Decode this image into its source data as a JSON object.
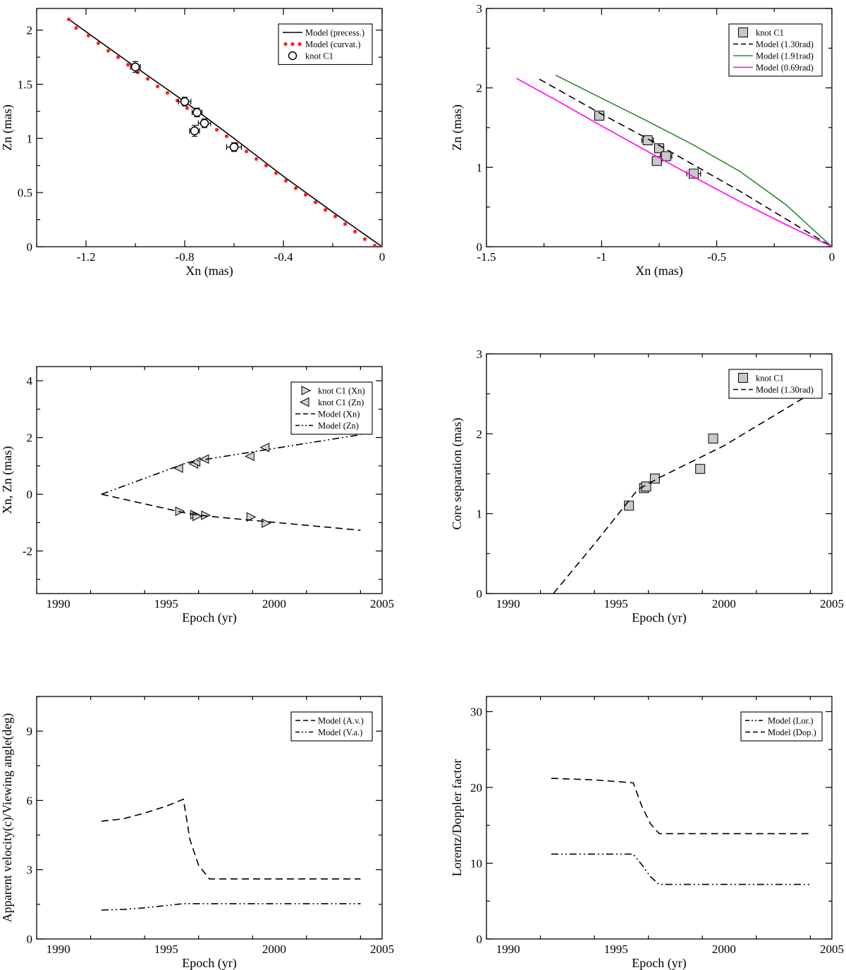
{
  "chart_data": [
    {
      "type": "scatter",
      "panel": "top-left",
      "xlabel": "Xn (mas)",
      "ylabel": "Zn (mas)",
      "xlim": [
        -1.4,
        0
      ],
      "ylim": [
        0,
        2.2
      ],
      "xticks": [
        -1.2,
        -0.8,
        -0.4,
        0
      ],
      "xtick_labels": [
        "-1.2",
        "-0.8",
        "-0.4",
        "0"
      ],
      "yticks": [
        0,
        0.5,
        1,
        1.5,
        2
      ],
      "ytick_labels": [
        "0",
        "0.5",
        "1",
        "1.5",
        "2"
      ],
      "legend_position": "top-right",
      "series": [
        {
          "name": "Model (precess.)",
          "kind": "line",
          "color": "#000000",
          "dash": "none",
          "x": [
            -1.27,
            -1.0,
            -0.8,
            -0.6,
            -0.4,
            -0.2,
            0
          ],
          "y": [
            2.1,
            1.66,
            1.34,
            1.0,
            0.65,
            0.32,
            0
          ]
        },
        {
          "name": "Model (curvat.)",
          "kind": "dots",
          "color": "#ff2020",
          "x": [
            -1.27,
            -1.24,
            -1.19,
            -1.15,
            -1.11,
            -1.07,
            -1.03,
            -0.99,
            -0.95,
            -0.91,
            -0.87,
            -0.83,
            -0.79,
            -0.75,
            -0.71,
            -0.67,
            -0.63,
            -0.59,
            -0.55,
            -0.51,
            -0.47,
            -0.43,
            -0.39,
            -0.35,
            -0.31,
            -0.27,
            -0.23,
            -0.19,
            -0.15,
            -0.11,
            -0.07,
            -0.03,
            0
          ],
          "y": [
            2.1,
            2.02,
            1.95,
            1.88,
            1.81,
            1.75,
            1.68,
            1.61,
            1.55,
            1.48,
            1.42,
            1.35,
            1.28,
            1.22,
            1.15,
            1.08,
            1.02,
            0.95,
            0.88,
            0.81,
            0.75,
            0.68,
            0.61,
            0.54,
            0.48,
            0.41,
            0.34,
            0.28,
            0.21,
            0.14,
            0.07,
            0.01,
            0
          ]
        },
        {
          "name": "knot C1",
          "kind": "circle",
          "color": "#000000",
          "x": [
            -1.0,
            -0.8,
            -0.75,
            -0.72,
            -0.76,
            -0.6
          ],
          "y": [
            1.66,
            1.34,
            1.24,
            1.14,
            1.07,
            0.92
          ],
          "xerr": [
            0.02,
            0.025,
            0.02,
            0.025,
            0.02,
            0.03
          ],
          "yerr": [
            0.05,
            0.04,
            0.04,
            0.04,
            0.05,
            0.04
          ]
        }
      ]
    },
    {
      "type": "scatter",
      "panel": "top-right",
      "xlabel": "Xn (mas)",
      "ylabel": "Zn (mas)",
      "xlim": [
        -1.5,
        0
      ],
      "ylim": [
        0,
        3
      ],
      "xticks": [
        -1.5,
        -1,
        -0.5,
        0
      ],
      "xtick_labels": [
        "-1.5",
        "-1",
        "-0.5",
        "0"
      ],
      "yticks": [
        0,
        1,
        2,
        3
      ],
      "ytick_labels": [
        "0",
        "1",
        "2",
        "3"
      ],
      "legend_position": "top-right",
      "series": [
        {
          "name": "knot C1",
          "kind": "square",
          "color": "#000000",
          "x": [
            -1.01,
            -0.8,
            -0.75,
            -0.72,
            -0.76,
            -0.6
          ],
          "y": [
            1.65,
            1.34,
            1.24,
            1.14,
            1.08,
            0.92
          ],
          "xerr": [
            0.02,
            0.025,
            0.02,
            0.025,
            0.02,
            0.03
          ],
          "yerr": [
            0.04,
            0.04,
            0.04,
            0.04,
            0.04,
            0.04
          ]
        },
        {
          "name": "Model (1.30rad)",
          "kind": "line",
          "color": "#000000",
          "dash": "10,6",
          "x": [
            -1.27,
            -1.0,
            -0.8,
            -0.6,
            -0.4,
            -0.2,
            0
          ],
          "y": [
            2.11,
            1.67,
            1.36,
            1.03,
            0.7,
            0.35,
            0
          ]
        },
        {
          "name": "Model (1.91rad)",
          "kind": "line",
          "color": "#2e8b2e",
          "dash": "none",
          "x": [
            -1.2,
            -1.0,
            -0.8,
            -0.6,
            -0.4,
            -0.2,
            0
          ],
          "y": [
            2.16,
            1.87,
            1.58,
            1.28,
            0.95,
            0.53,
            0
          ]
        },
        {
          "name": "Model (0.69rad)",
          "kind": "line",
          "color": "#ff00ff",
          "dash": "none",
          "x": [
            -1.37,
            -1.2,
            -1.0,
            -0.8,
            -0.6,
            -0.4,
            -0.2,
            0
          ],
          "y": [
            2.12,
            1.85,
            1.52,
            1.2,
            0.88,
            0.57,
            0.28,
            0
          ]
        }
      ]
    },
    {
      "type": "scatter",
      "panel": "middle-left",
      "xlabel": "Epoch (yr)",
      "ylabel": "Xn, Zn (mas)",
      "xlim": [
        1989,
        2005
      ],
      "ylim": [
        -3.5,
        4.5
      ],
      "xticks": [
        1990,
        1995,
        2000,
        2005
      ],
      "xtick_labels": [
        "1990",
        "1995",
        "2000",
        "2005"
      ],
      "yticks": [
        -2,
        0,
        2,
        4
      ],
      "ytick_labels": [
        "-2",
        "0",
        "2",
        "4"
      ],
      "legend_position": "top-right",
      "series": [
        {
          "name": "knot C1 (Xn)",
          "kind": "triangle-right",
          "color": "#000000",
          "x": [
            1995.6,
            1996.3,
            1996.4,
            1996.8,
            1998.9,
            1999.6
          ],
          "y": [
            -0.6,
            -0.72,
            -0.78,
            -0.74,
            -0.8,
            -1.02
          ]
        },
        {
          "name": "knot C1 (Zn)",
          "kind": "triangle-left",
          "color": "#000000",
          "x": [
            1995.6,
            1996.3,
            1996.4,
            1996.8,
            1998.9,
            1999.6
          ],
          "y": [
            0.92,
            1.07,
            1.14,
            1.24,
            1.34,
            1.65
          ]
        },
        {
          "name": "Model (Xn)",
          "kind": "line",
          "color": "#000000",
          "dash": "10,6",
          "x": [
            1992,
            1996,
            1997,
            2004
          ],
          "y": [
            0,
            -0.68,
            -0.78,
            -1.27
          ]
        },
        {
          "name": "Model (Zn)",
          "kind": "line",
          "color": "#000000",
          "dash": "10,4,2,4,2,4",
          "x": [
            1992,
            1996,
            1997,
            2004
          ],
          "y": [
            0,
            1.12,
            1.25,
            2.1
          ]
        }
      ]
    },
    {
      "type": "scatter",
      "panel": "middle-right",
      "xlabel": "Epoch (yr)",
      "ylabel": "Core separation (mas)",
      "xlim": [
        1989,
        2005
      ],
      "ylim": [
        0,
        3
      ],
      "xticks": [
        1990,
        1995,
        2000,
        2005
      ],
      "xtick_labels": [
        "1990",
        "1995",
        "2000",
        "2005"
      ],
      "yticks": [
        0,
        1,
        2,
        3
      ],
      "ytick_labels": [
        "0",
        "1",
        "2",
        "3"
      ],
      "legend_position": "top-right",
      "series": [
        {
          "name": "knot C1",
          "kind": "square",
          "color": "#000000",
          "x": [
            1995.6,
            1996.3,
            1996.4,
            1996.8,
            1998.9,
            1999.5
          ],
          "y": [
            1.1,
            1.32,
            1.34,
            1.44,
            1.56,
            1.94
          ]
        },
        {
          "name": "Model (1.30rad)",
          "kind": "line",
          "color": "#000000",
          "dash": "10,6",
          "x": [
            1992.1,
            1994,
            1996,
            1997,
            2000,
            2004
          ],
          "y": [
            0,
            0.62,
            1.3,
            1.45,
            1.85,
            2.5
          ]
        }
      ]
    },
    {
      "type": "line",
      "panel": "bottom-left",
      "xlabel": "Epoch (yr)",
      "ylabel": "Apparent velocity(c)/Viewing angle(deg)",
      "xlim": [
        1989,
        2005
      ],
      "ylim": [
        0,
        10.5
      ],
      "xticks": [
        1990,
        1995,
        2000,
        2005
      ],
      "xtick_labels": [
        "1990",
        "1995",
        "2000",
        "2005"
      ],
      "yticks": [
        0,
        3,
        6,
        9
      ],
      "ytick_labels": [
        "0",
        "3",
        "6",
        "9"
      ],
      "legend_position": "top-right",
      "series": [
        {
          "name": "Model (A.v.)",
          "kind": "line",
          "color": "#000000",
          "dash": "10,6",
          "x": [
            1992,
            1993,
            1994,
            1995,
            1995.8,
            1996.1,
            1996.5,
            1997,
            2004
          ],
          "y": [
            5.1,
            5.2,
            5.45,
            5.75,
            6.05,
            4.3,
            3.2,
            2.6,
            2.6
          ]
        },
        {
          "name": "Model (V.a.)",
          "kind": "line",
          "color": "#000000",
          "dash": "10,4,2,4,2,4",
          "x": [
            1992,
            1993,
            1994,
            1995,
            1995.8,
            1997,
            2004
          ],
          "y": [
            1.25,
            1.28,
            1.35,
            1.45,
            1.53,
            1.53,
            1.53
          ]
        }
      ]
    },
    {
      "type": "line",
      "panel": "bottom-right",
      "xlabel": "Epoch (yr)",
      "ylabel": "Lorentz/Doppler factor",
      "xlim": [
        1989,
        2005
      ],
      "ylim": [
        0,
        32
      ],
      "xticks": [
        1990,
        1995,
        2000,
        2005
      ],
      "xtick_labels": [
        "1990",
        "1995",
        "2000",
        "2005"
      ],
      "yticks": [
        0,
        10,
        20,
        30
      ],
      "ytick_labels": [
        "0",
        "10",
        "20",
        "30"
      ],
      "legend_position": "top-right",
      "series": [
        {
          "name": "Model (Lor.)",
          "kind": "line",
          "color": "#000000",
          "dash": "10,4,2,4,2,4",
          "x": [
            1992,
            1995.8,
            1996.2,
            1996.6,
            1997,
            2004
          ],
          "y": [
            11.2,
            11.2,
            9.8,
            8.2,
            7.2,
            7.2
          ]
        },
        {
          "name": "Model (Dop.)",
          "kind": "line",
          "color": "#000000",
          "dash": "10,6",
          "x": [
            1992,
            1994,
            1995.8,
            1996.2,
            1996.6,
            1997,
            2004
          ],
          "y": [
            21.2,
            21.0,
            20.6,
            17.5,
            15.2,
            13.9,
            13.9
          ]
        }
      ]
    }
  ]
}
